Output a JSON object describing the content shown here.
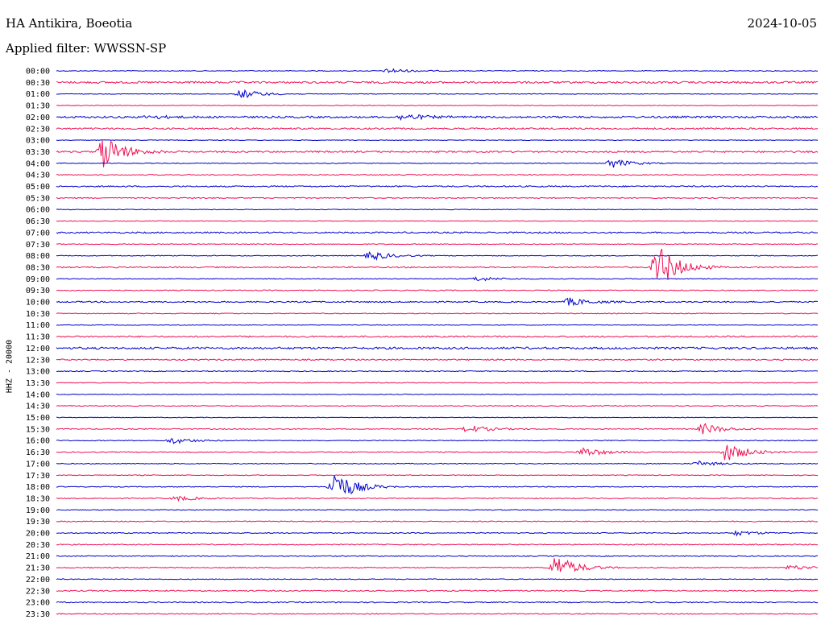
{
  "header": {
    "station": "HA Antikira, Boeotia",
    "date": "2024-10-05",
    "filter_label": "Applied filter: WWSSN-SP"
  },
  "chart_data": {
    "type": "line",
    "subtype": "helicorder",
    "ylabel": "HHZ - 20000",
    "colors": [
      "#0000cc",
      "#ee1155"
    ],
    "rows": [
      "00:00",
      "00:30",
      "01:00",
      "01:30",
      "02:00",
      "02:30",
      "03:00",
      "03:30",
      "04:00",
      "04:30",
      "05:00",
      "05:30",
      "06:00",
      "06:30",
      "07:00",
      "07:30",
      "08:00",
      "08:30",
      "09:00",
      "09:30",
      "10:00",
      "10:30",
      "11:00",
      "11:30",
      "12:00",
      "12:30",
      "13:00",
      "13:30",
      "14:00",
      "14:30",
      "15:00",
      "15:30",
      "16:00",
      "16:30",
      "17:00",
      "17:30",
      "18:00",
      "18:30",
      "19:00",
      "19:30",
      "20:00",
      "20:30",
      "21:00",
      "21:30",
      "22:00",
      "22:30",
      "23:00",
      "23:30"
    ],
    "row_minutes": 30,
    "noise_level": [
      0.5,
      1.2,
      0.4,
      0.4,
      1.2,
      1.0,
      0.4,
      1.0,
      0.5,
      0.6,
      0.8,
      0.6,
      0.4,
      0.4,
      0.9,
      0.5,
      0.5,
      0.8,
      0.5,
      0.6,
      0.8,
      0.5,
      0.4,
      0.9,
      1.3,
      0.8,
      0.6,
      0.5,
      0.4,
      0.5,
      0.4,
      0.6,
      0.5,
      0.6,
      0.5,
      0.5,
      0.5,
      0.6,
      0.5,
      0.6,
      0.6,
      0.6,
      0.6,
      0.6,
      0.5,
      0.7,
      0.7,
      0.6
    ],
    "events": [
      {
        "row": 0,
        "minute": 7.2,
        "amplitude": 3
      },
      {
        "row": 2,
        "minute": 4.0,
        "amplitude": 6
      },
      {
        "row": 4,
        "minute": 7.5,
        "amplitude": 4
      },
      {
        "row": 4,
        "minute": 2.0,
        "amplitude": 2
      },
      {
        "row": 7,
        "minute": 1.0,
        "amplitude": 22
      },
      {
        "row": 8,
        "minute": 12.0,
        "amplitude": 6
      },
      {
        "row": 16,
        "minute": 6.8,
        "amplitude": 6
      },
      {
        "row": 17,
        "minute": 13.0,
        "amplitude": 30
      },
      {
        "row": 18,
        "minute": 9.1,
        "amplitude": 3
      },
      {
        "row": 20,
        "minute": 11.1,
        "amplitude": 5
      },
      {
        "row": 31,
        "minute": 8.9,
        "amplitude": 5
      },
      {
        "row": 31,
        "minute": 14.0,
        "amplitude": 7
      },
      {
        "row": 32,
        "minute": 2.5,
        "amplitude": 4
      },
      {
        "row": 33,
        "minute": 11.4,
        "amplitude": 6
      },
      {
        "row": 33,
        "minute": 14.5,
        "amplitude": 12
      },
      {
        "row": 34,
        "minute": 13.9,
        "amplitude": 3
      },
      {
        "row": 36,
        "minute": 6.0,
        "amplitude": 22
      },
      {
        "row": 37,
        "minute": 2.6,
        "amplitude": 3
      },
      {
        "row": 40,
        "minute": 14.7,
        "amplitude": 3
      },
      {
        "row": 43,
        "minute": 10.8,
        "amplitude": 16
      },
      {
        "row": 43,
        "minute": 15.9,
        "amplitude": 3
      }
    ]
  }
}
